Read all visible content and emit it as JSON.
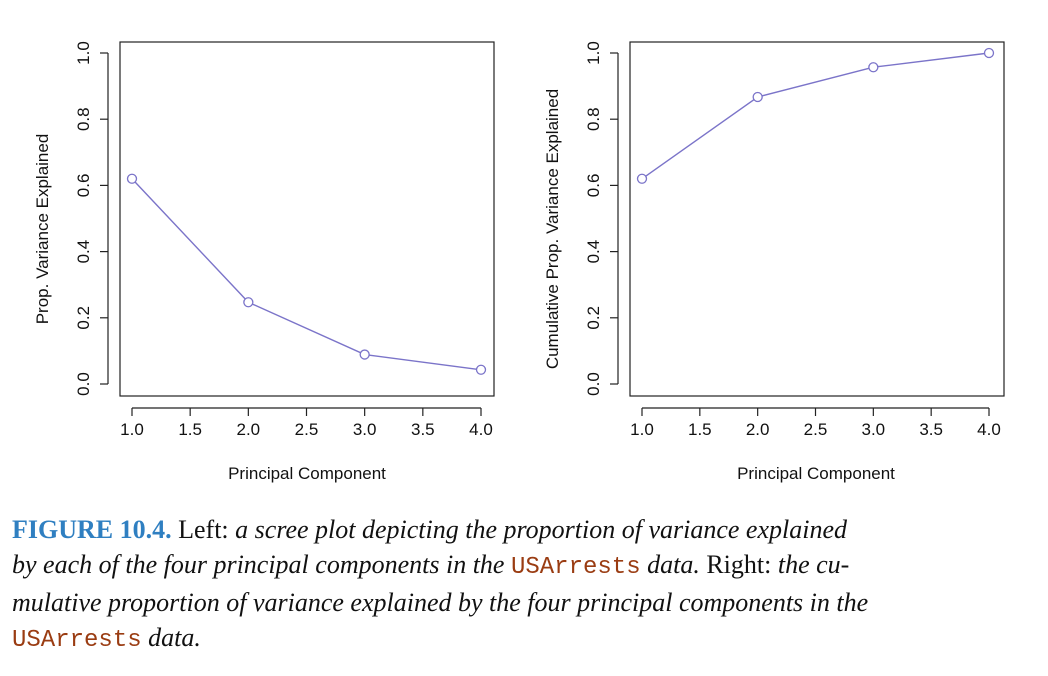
{
  "chart_data": [
    {
      "type": "line",
      "x": [
        1.0,
        2.0,
        3.0,
        4.0
      ],
      "y": [
        0.62,
        0.247,
        0.089,
        0.043
      ],
      "xlabel": "Principal Component",
      "ylabel": "Prop. Variance Explained",
      "xlim": [
        1.0,
        4.0
      ],
      "ylim": [
        0.0,
        1.0
      ],
      "xticks": [
        "1.0",
        "1.5",
        "2.0",
        "2.5",
        "3.0",
        "3.5",
        "4.0"
      ],
      "yticks": [
        "0.0",
        "0.2",
        "0.4",
        "0.6",
        "0.8",
        "1.0"
      ],
      "color": "#7b74c9",
      "marker": "open-circle",
      "grid": false
    },
    {
      "type": "line",
      "x": [
        1.0,
        2.0,
        3.0,
        4.0
      ],
      "y": [
        0.62,
        0.867,
        0.957,
        1.0
      ],
      "xlabel": "Principal Component",
      "ylabel": "Cumulative Prop. Variance Explained",
      "xlim": [
        1.0,
        4.0
      ],
      "ylim": [
        0.0,
        1.0
      ],
      "xticks": [
        "1.0",
        "1.5",
        "2.0",
        "2.5",
        "3.0",
        "3.5",
        "4.0"
      ],
      "yticks": [
        "0.0",
        "0.2",
        "0.4",
        "0.6",
        "0.8",
        "1.0"
      ],
      "color": "#7b74c9",
      "marker": "open-circle",
      "grid": false
    }
  ],
  "caption": {
    "figure_label": "FIGURE 10.4.",
    "w1": "Left:",
    "i1": "a scree plot depicting the proportion of variance explained",
    "i2": "by each of the four principal components in the",
    "code1": "USArrests",
    "i3": "data.",
    "w2": "Right:",
    "i4": "the cu-",
    "i5": "mulative proportion of variance explained by the four principal components in the",
    "code2": "USArrests",
    "i6": "data."
  },
  "colors": {
    "line": "#7b74c9",
    "figure_label": "#2f7fc1",
    "code": "#9a3c12"
  }
}
